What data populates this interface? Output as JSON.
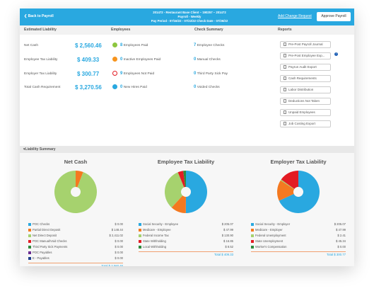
{
  "topbar": {
    "back_label": "Back to Payroll",
    "line1": "201472 - Restaurant Base Client – 190257 – 201472",
    "line2": "Payroll - Weekly",
    "line3": "Pay Period - 07/16/22 - 07/22/22    Check Date - 07/26/22",
    "add_change": "Add Change Request",
    "approve": "Approve Payroll"
  },
  "columns": {
    "liability": "Estimated Liability",
    "employees": "Employees",
    "checks": "Check Summary",
    "reports": "Reports"
  },
  "liability": [
    {
      "label": "Net Cash",
      "value": "$ 2,560.46"
    },
    {
      "label": "Employee Tax Liability",
      "value": "$ 409.33"
    },
    {
      "label": "Employer Tax Liability",
      "value": "$ 300.77"
    },
    {
      "label": "Total Cash Requirement",
      "value": "$ 3,270.56"
    }
  ],
  "employees": [
    {
      "count": "8",
      "label": "Employees Paid",
      "color": "#8dc63f"
    },
    {
      "count": "0",
      "label": "Inactive Employees Paid",
      "color": "#f7941d"
    },
    {
      "count": "9",
      "label": "Employees Not Paid",
      "color": "#e31b23"
    },
    {
      "count": "0",
      "label": "New Hires Paid",
      "color": "#29a8e0"
    }
  ],
  "checks": [
    {
      "count": "7",
      "label": "Employee Checks"
    },
    {
      "count": "0",
      "label": "Manual Checks"
    },
    {
      "count": "0",
      "label": "Third Party Sick Pay"
    },
    {
      "count": "0",
      "label": "Voided Checks"
    }
  ],
  "reports": [
    "Pre-Post Payroll Journal",
    "Pre-Post Employee Exp...",
    "Payrun Audit Export",
    "Cash Requirements",
    "Labor Distribution",
    "Deductions Not Taken",
    "Unpaid Employees",
    "Job Costing Export"
  ],
  "summary_label": "Liability Summary",
  "charts": [
    {
      "title": "Net Cash",
      "slices": [
        {
          "label": "POC Checks",
          "value": "$ 0.00",
          "amount": 0,
          "color": "#29a8e0"
        },
        {
          "label": "Partial Direct Deposit",
          "value": "$ 148.44",
          "amount": 148.44,
          "color": "#f47920"
        },
        {
          "label": "Net Direct Deposit",
          "value": "$ 2,411.02",
          "amount": 2411.02,
          "color": "#a6d26e"
        },
        {
          "label": "POC Manual/Void Checks",
          "value": "$ 0.00",
          "amount": 0,
          "color": "#e31b23"
        },
        {
          "label": "Third Party Sick Payments",
          "value": "$ 0.00",
          "amount": 0,
          "color": "#2e8b3e"
        },
        {
          "label": "POC Payables",
          "value": "$ 0.00",
          "amount": 0,
          "color": "#6b2c91"
        },
        {
          "label": "E - Payables",
          "value": "$ 0.00",
          "amount": 0,
          "color": "#1e3f8c"
        }
      ],
      "total": "Total $ 2,560.46"
    },
    {
      "title": "Employee Tax Liability",
      "slices": [
        {
          "label": "Social Security - Employee",
          "value": "$ 205.07",
          "amount": 205.07,
          "color": "#29a8e0"
        },
        {
          "label": "Medicare - Employee",
          "value": "$ 47.99",
          "amount": 47.99,
          "color": "#f47920"
        },
        {
          "label": "Federal Income Tax",
          "value": "$ 130.90",
          "amount": 130.9,
          "color": "#a6d26e"
        },
        {
          "label": "State Withholding",
          "value": "$ 16.85",
          "amount": 16.85,
          "color": "#e31b23"
        },
        {
          "label": "Local Withholding",
          "value": "$ 8.52",
          "amount": 8.52,
          "color": "#2e8b3e"
        }
      ],
      "total": "Total $ 409.33"
    },
    {
      "title": "Employer Tax Liability",
      "slices": [
        {
          "label": "Social Security - Employer",
          "value": "$ 205.07",
          "amount": 205.07,
          "color": "#29a8e0"
        },
        {
          "label": "Medicare - Employer",
          "value": "$ 47.99",
          "amount": 47.99,
          "color": "#f47920"
        },
        {
          "label": "Federal Unemployment",
          "value": "$ 2.41",
          "amount": 2.41,
          "color": "#a6d26e"
        },
        {
          "label": "State Unemployment",
          "value": "$ 45.34",
          "amount": 45.34,
          "color": "#e31b23"
        },
        {
          "label": "Worker's Compensation",
          "value": "$ 0.00",
          "amount": 0,
          "color": "#2e8b3e"
        }
      ],
      "total": "Total $ 300.77"
    }
  ]
}
